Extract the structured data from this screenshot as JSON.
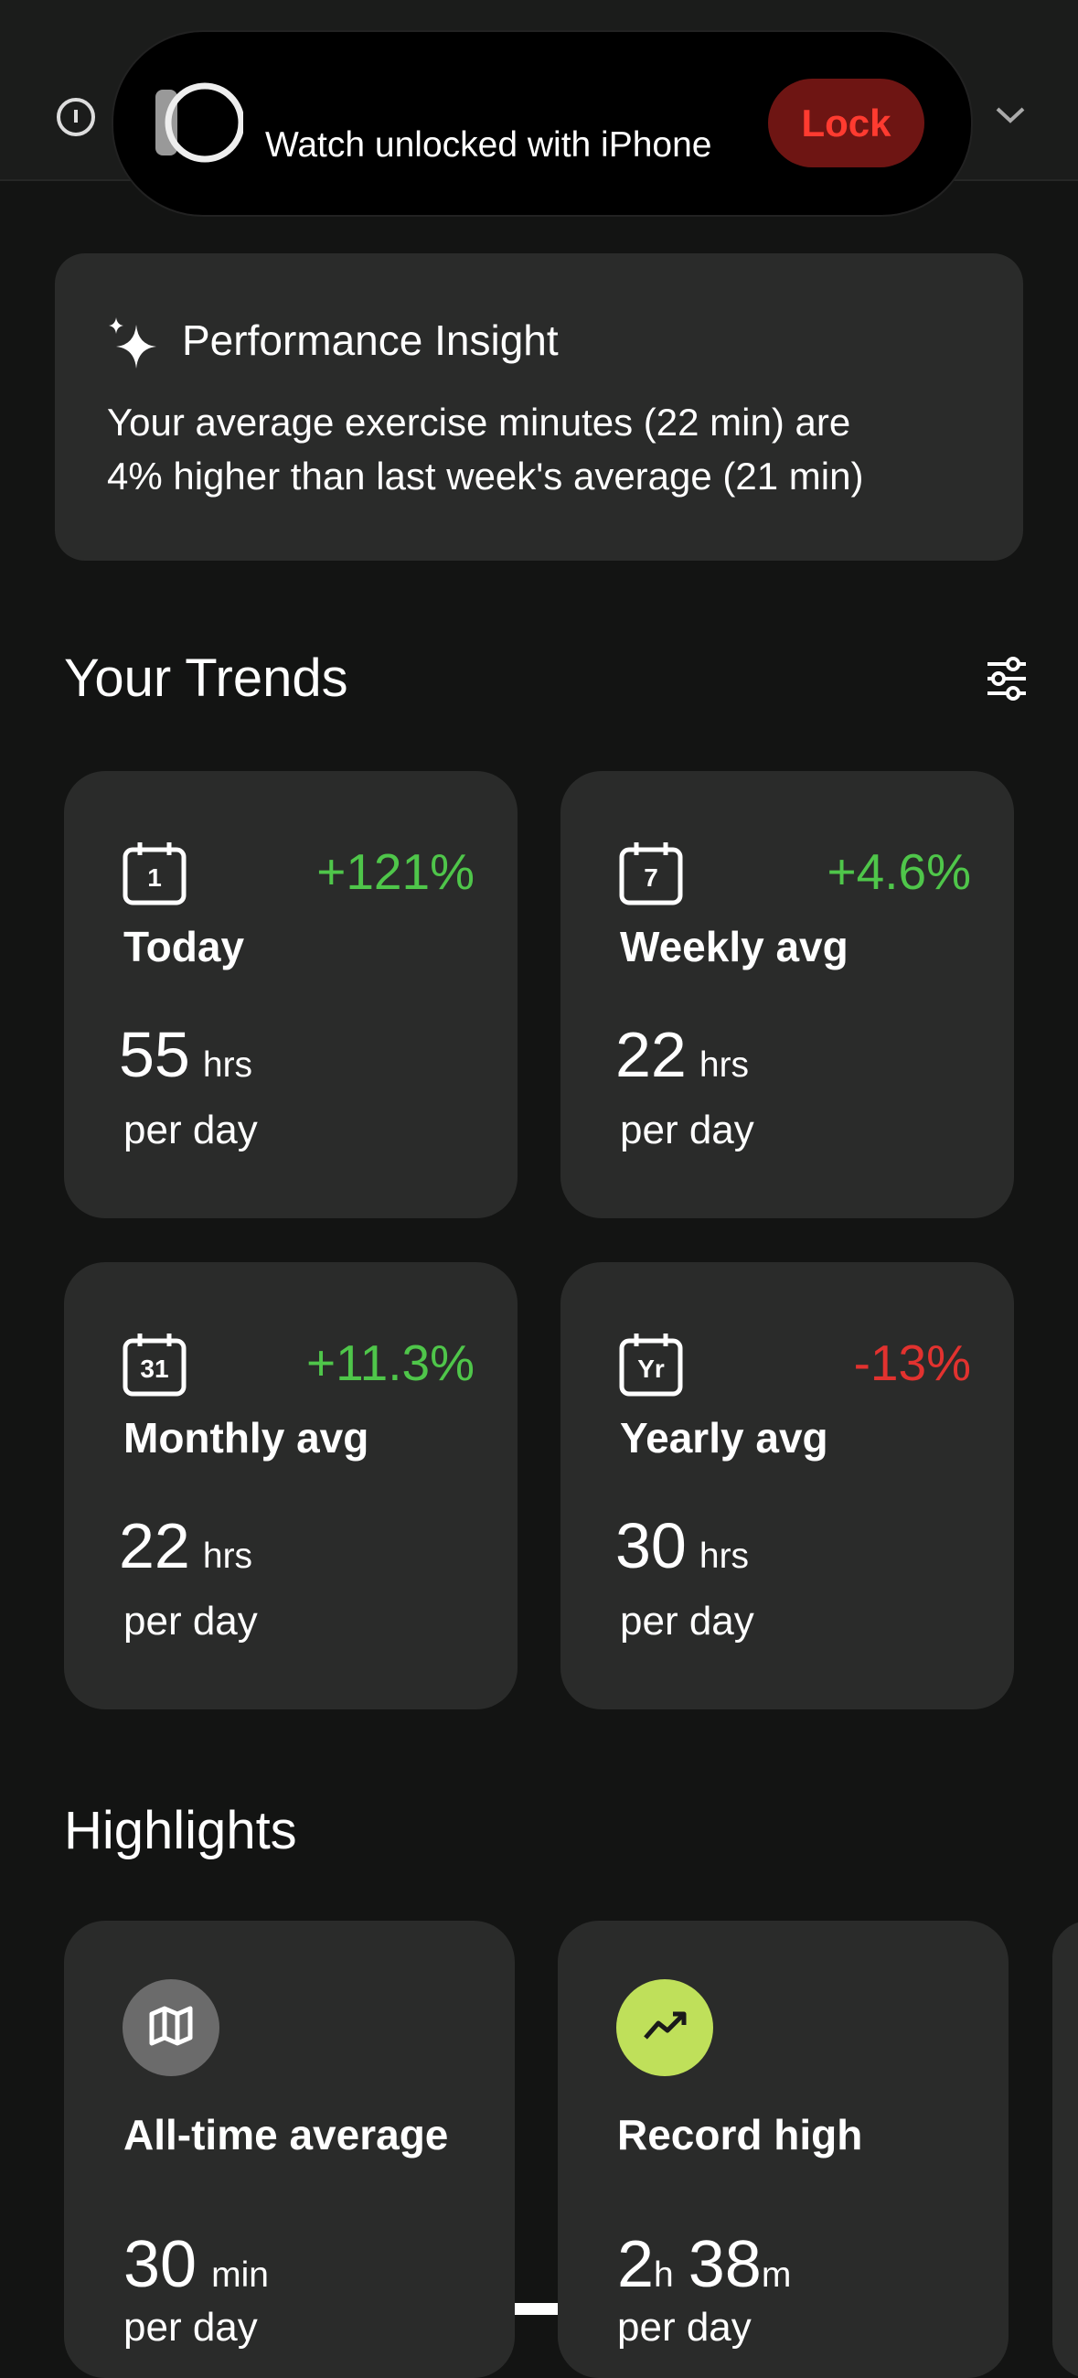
{
  "notification": {
    "text": "Watch unlocked with iPhone",
    "button": "Lock"
  },
  "insight": {
    "title": "Performance Insight",
    "lines": [
      "Your average exercise minutes (22 min) are",
      "4% higher than last week's average (21 min)"
    ]
  },
  "trends": {
    "title": "Your Trends",
    "cards": [
      {
        "icon": "1",
        "change": "+121%",
        "color": "#4fc64a",
        "label": "Today",
        "value": "55",
        "unit": "hrs",
        "period": "per day"
      },
      {
        "icon": "7",
        "change": "+4.6%",
        "color": "#4fc64a",
        "label": "Weekly avg",
        "value": "22",
        "unit": "hrs",
        "period": "per day"
      },
      {
        "icon": "31",
        "change": "+11.3%",
        "color": "#4fc64a",
        "label": "Monthly avg",
        "value": "22",
        "unit": "hrs",
        "period": "per day"
      },
      {
        "icon": "Yr",
        "change": "-13%",
        "color": "#e2322f",
        "label": "Yearly avg",
        "value": "30",
        "unit": "hrs",
        "period": "per day"
      }
    ]
  },
  "highlights": {
    "title": "Highlights",
    "cards": [
      {
        "label": "All-time average",
        "value": [
          {
            "num": "30",
            "unit": "min"
          }
        ],
        "period": "per day"
      },
      {
        "label": "Record high",
        "value": [
          {
            "num": "2",
            "unit": "h"
          },
          {
            "num": "38",
            "unit": "m"
          }
        ],
        "period": "per day"
      }
    ]
  }
}
